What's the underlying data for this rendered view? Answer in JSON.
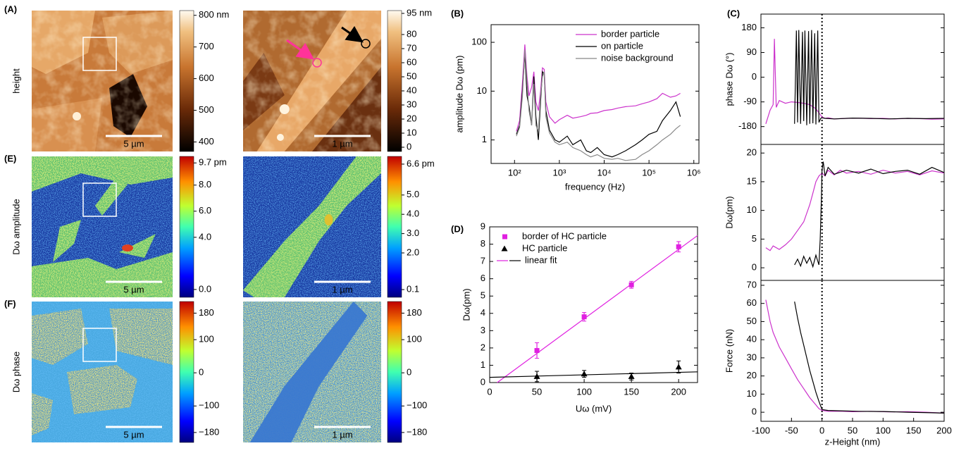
{
  "panel_labels": [
    "(A)",
    "(E)",
    "(F)",
    "(B)",
    "(D)",
    "(C)"
  ],
  "image_rows": [
    {
      "label": "height",
      "maps": [
        {
          "colorbar": {
            "lim": [
              370,
              815
            ],
            "ticks": [
              {
                "value": 800,
                "label": "800 nm"
              },
              700,
              600,
              500,
              400
            ]
          },
          "scale_bar": "5 µm"
        },
        {
          "colorbar": {
            "lim": [
              -3,
              97
            ],
            "ticks": [
              {
                "value": 95,
                "label": "95 nm"
              },
              80,
              70,
              60,
              50,
              40,
              30,
              20,
              10,
              0
            ]
          },
          "scale_bar": "1 µm"
        }
      ]
    },
    {
      "label": "Dω amplitude",
      "maps": [
        {
          "colorbar": {
            "lim": [
              -0.6,
              10.2
            ],
            "ticks": [
              {
                "value": 9.7,
                "label": "9.7 pm"
              },
              {
                "value": 8,
                "label": "8.0"
              },
              {
                "value": 6,
                "label": "6.0"
              },
              {
                "value": 4,
                "label": "4.0"
              },
              {
                "value": 0,
                "label": "0.0"
              }
            ]
          },
          "scale_bar": "5 µm"
        },
        {
          "colorbar": {
            "lim": [
              -0.3,
              7
            ],
            "ticks": [
              {
                "value": 6.6,
                "label": "6.6 pm"
              },
              {
                "value": 5,
                "label": "5.0"
              },
              {
                "value": 4,
                "label": "4.0"
              },
              {
                "value": 3,
                "label": "3.0"
              },
              {
                "value": 2,
                "label": "2.0"
              },
              {
                "value": 0.1,
                "label": "0.1"
              }
            ]
          },
          "scale_bar": "1 µm"
        }
      ]
    },
    {
      "label": "Dω phase",
      "maps": [
        {
          "colorbar": {
            "lim": [
              -210,
              215
            ],
            "ticks": [
              180,
              100,
              0,
              {
                "value": -100,
                "label": "−100"
              },
              {
                "value": -180,
                "label": "−180"
              }
            ]
          },
          "scale_bar": "5 µm"
        },
        {
          "colorbar": {
            "lim": [
              -210,
              215
            ],
            "ticks": [
              180,
              100,
              0,
              {
                "value": -100,
                "label": "−100"
              },
              {
                "value": -180,
                "label": "−180"
              }
            ]
          },
          "scale_bar": "1 µm"
        }
      ]
    }
  ],
  "chart_data": [
    {
      "type": "line",
      "xlabel": "frequency (Hz)",
      "ylabel": "amplitude Dω (pm)",
      "xlog": true,
      "ylog": true,
      "xlim": [
        30,
        1300000
      ],
      "ylim": [
        0.33,
        230
      ],
      "xticks": [
        {
          "value": 100,
          "label": "10²"
        },
        {
          "value": 1000,
          "label": "10³"
        },
        {
          "value": 10000,
          "label": "10⁴"
        },
        {
          "value": 100000,
          "label": "10⁵"
        },
        {
          "value": 1000000,
          "label": "10⁶"
        }
      ],
      "yticks": [
        1,
        10,
        100
      ],
      "legend": "upper right",
      "x": [
        110,
        130,
        150,
        170,
        190,
        210,
        240,
        270,
        300,
        340,
        380,
        420,
        460,
        500,
        600,
        800,
        1000,
        1500,
        2000,
        3000,
        4000,
        5000,
        7000,
        10000,
        15000,
        20000,
        30000,
        50000,
        70000,
        100000,
        150000,
        200000,
        300000,
        400000,
        500000
      ],
      "series": [
        {
          "name": "border particle",
          "color": "#cc33cc",
          "values": [
            1.5,
            2.5,
            15,
            90,
            20,
            8,
            12,
            25,
            6,
            4,
            10,
            30,
            28,
            6,
            3,
            2.2,
            2.6,
            3.2,
            2.8,
            3,
            3.2,
            3.5,
            3.6,
            4,
            4.2,
            4.5,
            4.8,
            5,
            5.5,
            6,
            7,
            9,
            7.5,
            8,
            9
          ]
        },
        {
          "name": "on particle",
          "color": "#000000",
          "values": [
            1.3,
            2,
            10,
            60,
            8,
            5,
            2,
            20,
            3,
            1,
            6,
            25,
            22,
            4,
            1.6,
            1,
            0.9,
            1.2,
            0.8,
            1,
            0.6,
            0.55,
            0.7,
            0.5,
            0.45,
            0.5,
            0.6,
            0.8,
            1,
            1.3,
            1.5,
            2.5,
            4,
            6,
            3
          ]
        },
        {
          "name": "noise background",
          "color": "#888888",
          "values": [
            1.2,
            1.8,
            8,
            70,
            15,
            4,
            2,
            14,
            2,
            1.5,
            8,
            20,
            25,
            3,
            1.4,
            0.9,
            0.8,
            0.9,
            0.7,
            0.6,
            0.5,
            0.45,
            0.5,
            0.42,
            0.4,
            0.42,
            0.38,
            0.4,
            0.5,
            0.6,
            0.8,
            1,
            1.3,
            1.7,
            2
          ]
        }
      ]
    },
    {
      "type": "scatter",
      "xlabel": "Uω (mV)",
      "ylabel": "Dω(pm)",
      "xlim": [
        0,
        220
      ],
      "ylim": [
        0,
        9
      ],
      "xticks": [
        0,
        50,
        100,
        150,
        200
      ],
      "yticks": [
        0,
        1,
        2,
        3,
        4,
        5,
        6,
        7,
        8,
        9
      ],
      "legend": "upper left",
      "x": [
        50,
        100,
        150,
        200
      ],
      "series": [
        {
          "name": "border of HC particle",
          "color": "#e020e0",
          "marker": "square",
          "values": [
            1.85,
            3.8,
            5.65,
            7.85
          ],
          "errors": [
            0.45,
            0.25,
            0.2,
            0.3
          ]
        },
        {
          "name": "HC particle",
          "color": "#000000",
          "marker": "triangle",
          "values": [
            0.35,
            0.5,
            0.35,
            0.9
          ],
          "errors": [
            0.3,
            0.2,
            0.2,
            0.35
          ]
        }
      ],
      "fits": {
        "name": "linear fit",
        "lines": [
          {
            "color": "#e020e0",
            "x": [
              8,
              220
            ],
            "values": [
              0,
              8.5
            ]
          },
          {
            "color": "#000000",
            "x": [
              0,
              220
            ],
            "values": [
              0.3,
              0.62
            ]
          }
        ]
      }
    },
    {
      "type": "line",
      "ylabel": "phase Dω (°)",
      "xlim": [
        -100,
        200
      ],
      "ylim": [
        -245,
        230
      ],
      "yticks": [
        -180,
        -90,
        0,
        90,
        180
      ],
      "vline": 0,
      "series": [
        {
          "color": "#cc33cc",
          "x": [
            -92,
            -85,
            -80,
            -78,
            -75,
            -70,
            -60,
            -50,
            -40,
            -30,
            -20,
            -10,
            -5,
            0,
            5,
            10,
            20,
            40,
            60,
            80,
            100,
            120,
            140,
            160,
            180,
            200
          ],
          "values": [
            -170,
            -120,
            -100,
            140,
            -110,
            -85,
            -95,
            -90,
            -92,
            -95,
            -100,
            -115,
            -130,
            -145,
            -150,
            -148,
            -152,
            -150,
            -149,
            -151,
            -150,
            -152,
            -150,
            -151,
            -153,
            -152
          ]
        },
        {
          "color": "#000000",
          "x": [
            -45,
            -42,
            -40,
            -38,
            -35,
            -32,
            -30,
            -28,
            -25,
            -22,
            -20,
            -17,
            -15,
            -12,
            -10,
            -7,
            -5,
            -2,
            0,
            5,
            20,
            50,
            80,
            110,
            140,
            170,
            200
          ],
          "values": [
            -170,
            170,
            -165,
            172,
            -170,
            165,
            -160,
            170,
            -175,
            168,
            -170,
            172,
            -168,
            160,
            -172,
            170,
            -165,
            -150,
            -148,
            -150,
            -152,
            -149,
            -150,
            -152,
            -150,
            -151,
            -150
          ]
        }
      ]
    },
    {
      "type": "line",
      "ylabel": "Dω(pm)",
      "xlim": [
        -100,
        200
      ],
      "ylim": [
        -2.2,
        21.5
      ],
      "yticks": [
        0,
        5,
        10,
        15,
        20
      ],
      "vline": 0,
      "series": [
        {
          "color": "#cc33cc",
          "x": [
            -92,
            -85,
            -80,
            -70,
            -60,
            -50,
            -40,
            -30,
            -20,
            -15,
            -10,
            -5,
            0,
            5,
            10,
            20,
            30,
            40,
            60,
            80,
            100,
            120,
            140,
            160,
            180,
            200
          ],
          "values": [
            3.5,
            3,
            3.8,
            3.2,
            4,
            5,
            6.5,
            8,
            11,
            13,
            15,
            16,
            16.5,
            16,
            17,
            16.2,
            17,
            16.5,
            16.8,
            16.3,
            17,
            16.5,
            16.8,
            16.2,
            16.9,
            16.5
          ]
        },
        {
          "color": "#000000",
          "x": [
            -45,
            -40,
            -35,
            -30,
            -25,
            -20,
            -15,
            -10,
            -5,
            -3,
            -1,
            0,
            2,
            5,
            10,
            20,
            40,
            60,
            80,
            100,
            120,
            140,
            160,
            180,
            200
          ],
          "values": [
            0.5,
            1.5,
            0.3,
            2,
            0.8,
            1.8,
            0.2,
            2.2,
            0.5,
            5,
            12,
            17,
            18.5,
            16,
            17.5,
            16.3,
            17,
            16.5,
            17.2,
            16.4,
            16.8,
            17,
            16.3,
            17.5,
            16.6
          ]
        }
      ]
    },
    {
      "type": "line",
      "ylabel": "Force (nN)",
      "xlabel": "z-Height (nm)",
      "xlim": [
        -100,
        200
      ],
      "ylim": [
        -5,
        72.7
      ],
      "xticks": [
        -100,
        -50,
        0,
        50,
        100,
        150,
        200
      ],
      "yticks": [
        0,
        10,
        20,
        30,
        40,
        50,
        60,
        70
      ],
      "vline": 0,
      "series": [
        {
          "color": "#cc33cc",
          "x": [
            -92,
            -85,
            -80,
            -70,
            -60,
            -50,
            -40,
            -30,
            -20,
            -10,
            -5,
            0,
            10,
            30,
            50,
            80,
            110,
            140,
            170,
            200
          ],
          "values": [
            62,
            50,
            44,
            36,
            30,
            24,
            18,
            13,
            8,
            4,
            2,
            1,
            0.5,
            0.6,
            0.3,
            0.5,
            0.2,
            0.3,
            0,
            -0.5
          ]
        },
        {
          "color": "#000000",
          "x": [
            -45,
            -40,
            -35,
            -30,
            -25,
            -20,
            -15,
            -10,
            -5,
            0,
            10,
            30,
            60,
            100,
            140,
            180,
            200
          ],
          "values": [
            61,
            52,
            44,
            37,
            30,
            23,
            17,
            11,
            6,
            1.5,
            1,
            0.8,
            0.5,
            0.4,
            0,
            -0.3,
            -0.5
          ]
        }
      ]
    }
  ]
}
